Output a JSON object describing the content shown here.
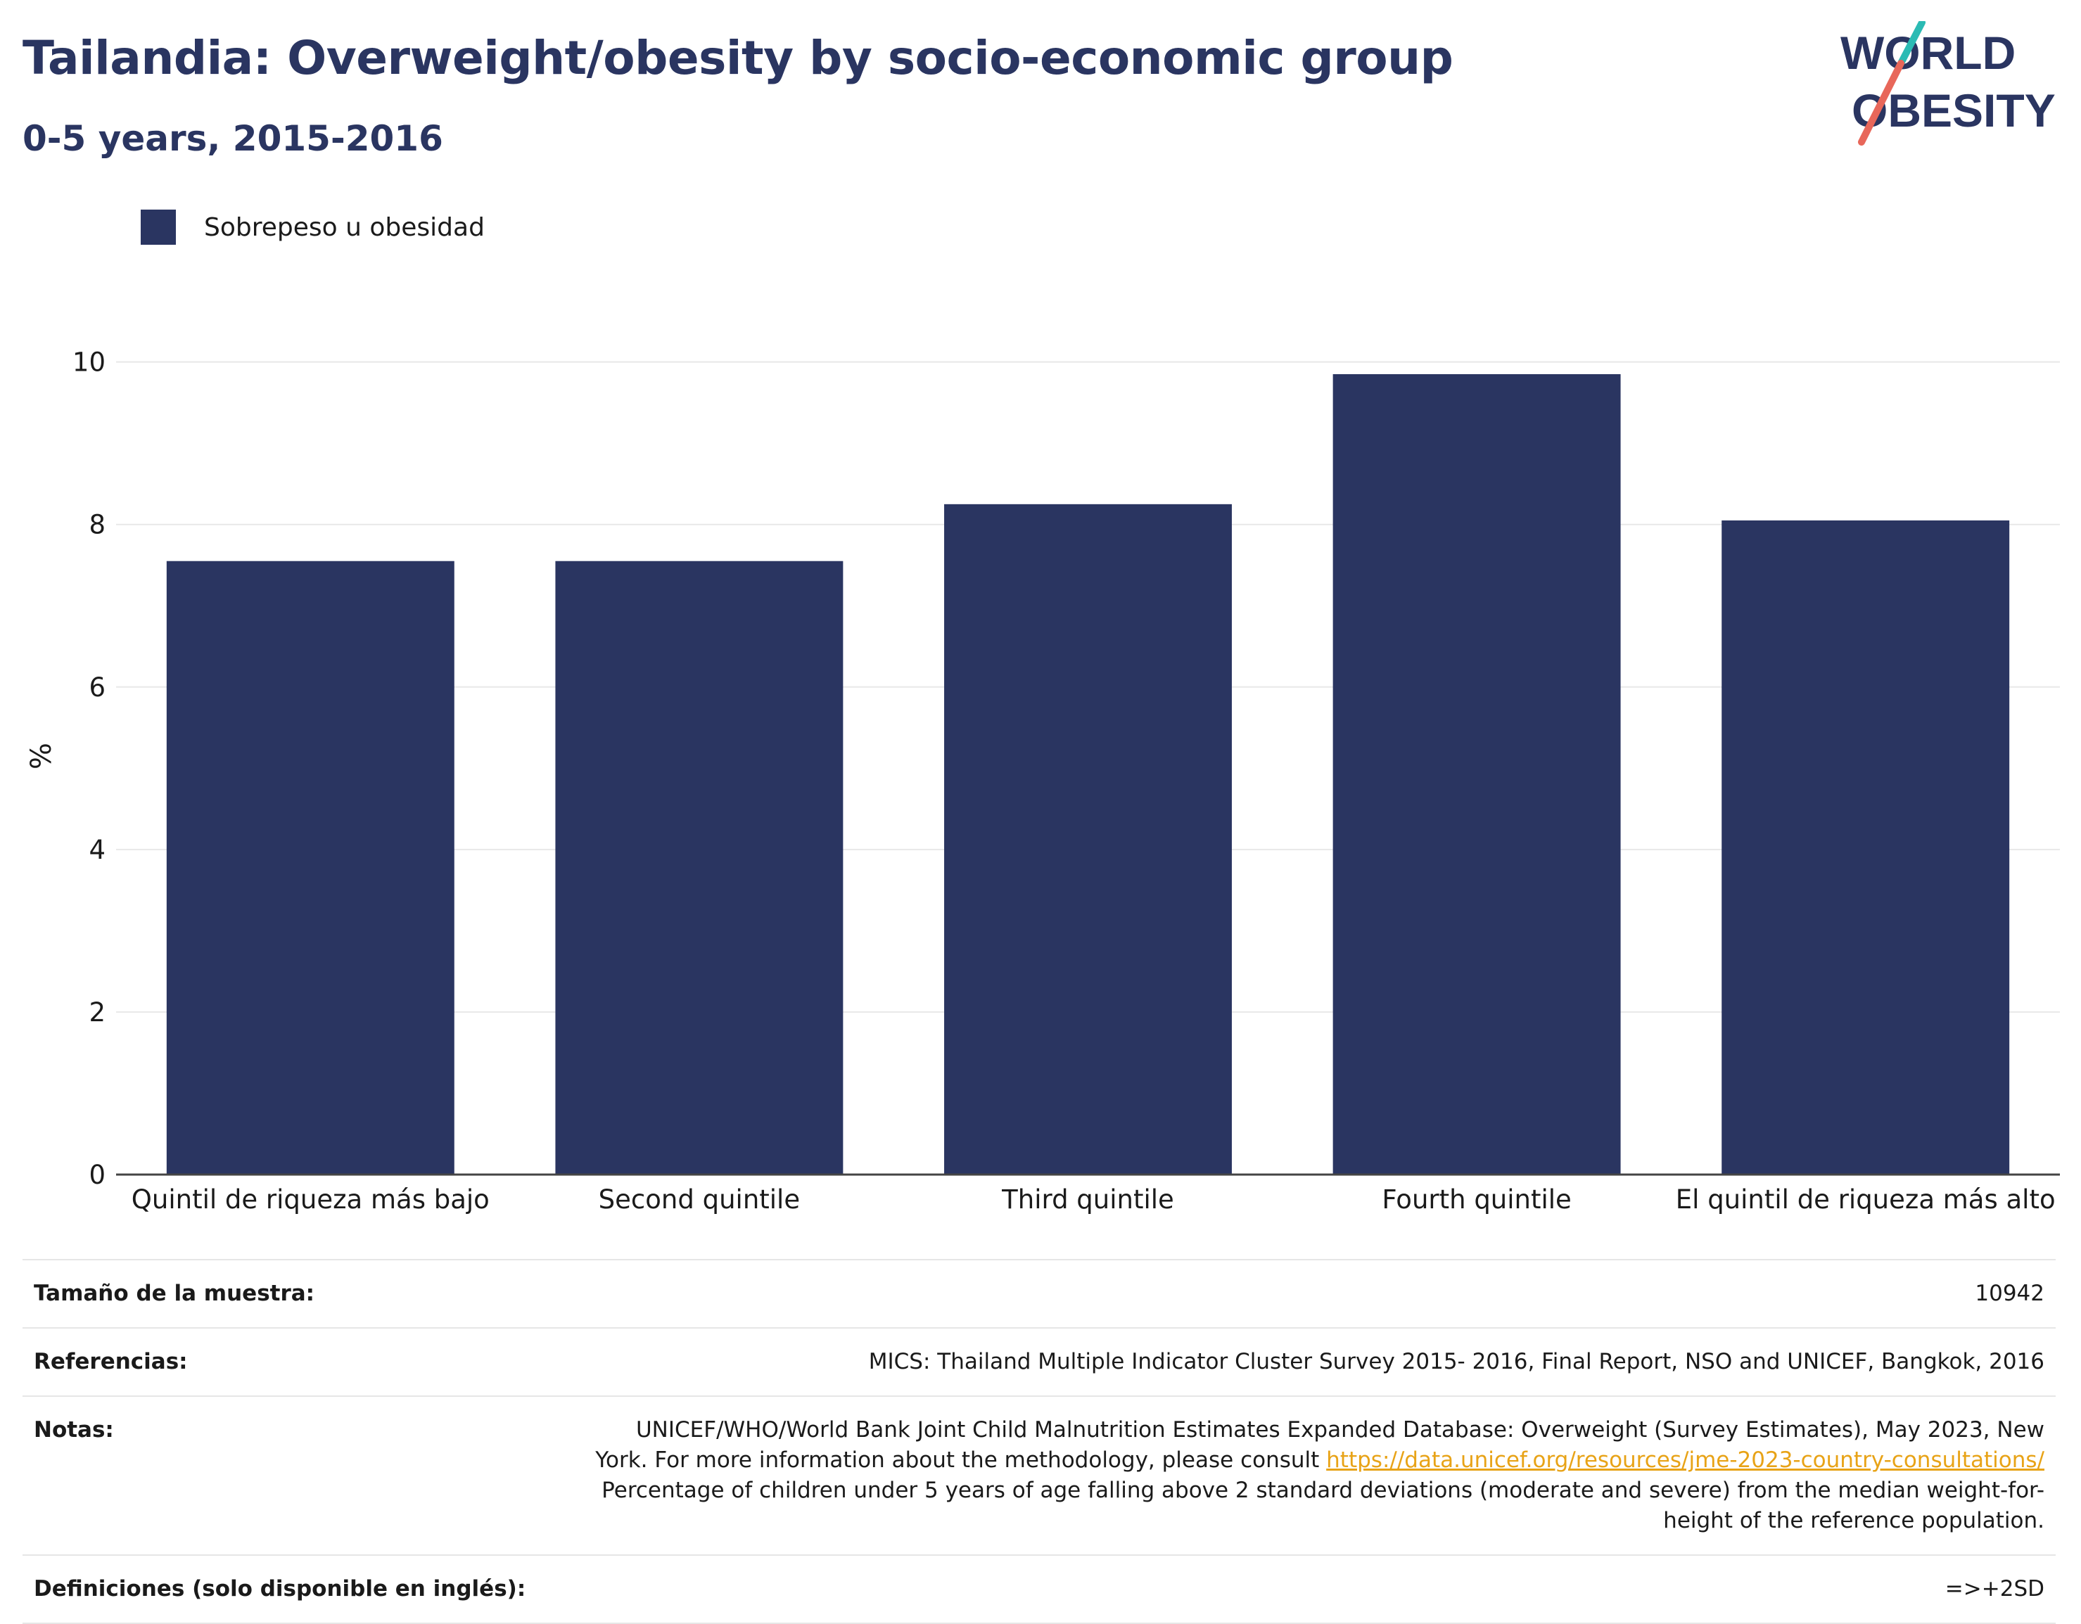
{
  "header": {
    "title": "Tailandia: Overweight/obesity by socio-economic group",
    "subtitle": "0-5 years, 2015-2016"
  },
  "logo": {
    "line1": "WORLD",
    "line2": "OBESITY",
    "colors": {
      "text": "#2a3561",
      "slash_top": "#2bbbb4",
      "slash_bottom": "#e8675a"
    }
  },
  "legend": {
    "label": "Sobrepeso u obesidad",
    "color": "#2a3561"
  },
  "chart_data": {
    "type": "bar",
    "categories": [
      "Quintil de riqueza más bajo",
      "Second quintile",
      "Third quintile",
      "Fourth quintile",
      "El quintil de riqueza más alto"
    ],
    "series": [
      {
        "name": "Sobrepeso u obesidad",
        "values": [
          7.55,
          7.55,
          8.25,
          9.85,
          8.05
        ],
        "color": "#2a3561"
      }
    ],
    "ylabel": "%",
    "xlabel": "",
    "ylim": [
      0,
      10.3
    ],
    "yticks": [
      0,
      2,
      4,
      6,
      8,
      10
    ],
    "grid": true,
    "legend_position": "top-left"
  },
  "info": {
    "sample_size": {
      "label": "Tamaño de la muestra:",
      "value": "10942"
    },
    "references": {
      "label": "Referencias:",
      "value": "MICS: Thailand Multiple Indicator Cluster Survey 2015- 2016, Final Report, NSO and UNICEF, Bangkok, 2016"
    },
    "notes": {
      "label": "Notas:",
      "text_before_link": "UNICEF/WHO/World Bank Joint Child Malnutrition Estimates Expanded Database: Overweight (Survey Estimates), May 2023, New York. For more information about the methodology, please consult ",
      "link": "https://data.unicef.org/resources/jme-2023-country-consultations/",
      "text_after_link": " Percentage of children under 5 years of age falling above 2 standard deviations (moderate and severe) from the median weight-for-height of the reference population."
    },
    "definitions": {
      "label": "Definiciones (solo disponible en inglés):",
      "value": "=>+2SD"
    }
  }
}
